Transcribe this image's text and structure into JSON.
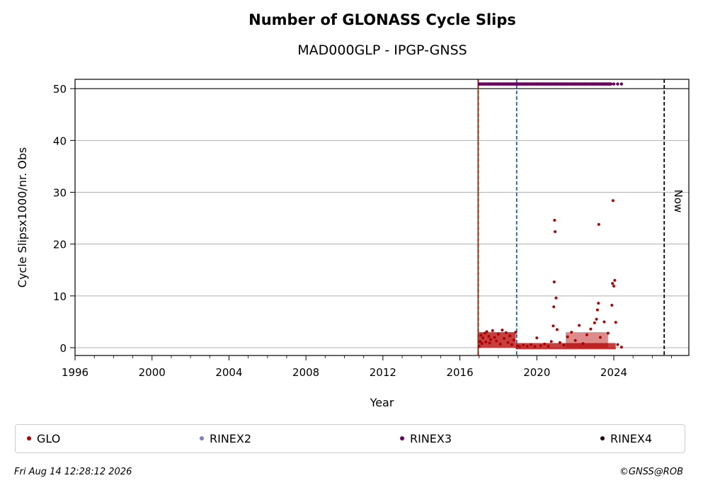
{
  "chart_data": {
    "type": "scatter",
    "title": "Number of GLONASS Cycle Slips",
    "subtitle": "MAD000GLP - IPGP-GNSS",
    "xlabel": "Year",
    "ylabel": "Cycle Slipsx1000/nr. Obs",
    "xlim": [
      1996.0,
      2027.9
    ],
    "ylim": [
      -1.5,
      51.8
    ],
    "xticks": [
      1996,
      2000,
      2004,
      2008,
      2012,
      2016,
      2020,
      2024
    ],
    "yticks": [
      0,
      10,
      20,
      30,
      40,
      50
    ],
    "grid": "horizontal",
    "legend_placement": "bottom",
    "vertical_lines": [
      {
        "x": 2016.95,
        "color": "#008000",
        "style": "solid"
      },
      {
        "x": 2016.95,
        "color": "#cc0000",
        "style": "dashed"
      },
      {
        "x": 2018.95,
        "color": "#1f5fb0",
        "style": "dashed"
      },
      {
        "x": 2026.62,
        "color": "#000000",
        "style": "dashed",
        "label": "Now"
      }
    ],
    "series": [
      {
        "name": "GLO",
        "color": "#b30000",
        "points": [
          [
            2017.0,
            0.3
          ],
          [
            2017.05,
            1.2
          ],
          [
            2017.1,
            2.4
          ],
          [
            2017.15,
            0.8
          ],
          [
            2017.2,
            1.9
          ],
          [
            2017.3,
            2.8
          ],
          [
            2017.35,
            1.1
          ],
          [
            2017.4,
            3.1
          ],
          [
            2017.5,
            2.2
          ],
          [
            2017.55,
            0.9
          ],
          [
            2017.6,
            1.6
          ],
          [
            2017.7,
            3.3
          ],
          [
            2017.8,
            2.0
          ],
          [
            2017.9,
            1.3
          ],
          [
            2018.0,
            2.6
          ],
          [
            2018.1,
            0.7
          ],
          [
            2018.2,
            3.4
          ],
          [
            2018.3,
            1.8
          ],
          [
            2018.4,
            2.9
          ],
          [
            2018.5,
            1.0
          ],
          [
            2018.6,
            2.3
          ],
          [
            2018.7,
            0.6
          ],
          [
            2018.8,
            1.5
          ],
          [
            2018.9,
            3.0
          ],
          [
            2019.0,
            0.4
          ],
          [
            2019.1,
            0.2
          ],
          [
            2019.3,
            0.5
          ],
          [
            2019.5,
            0.3
          ],
          [
            2019.7,
            0.6
          ],
          [
            2019.9,
            0.2
          ],
          [
            2020.0,
            1.9
          ],
          [
            2020.2,
            0.4
          ],
          [
            2020.4,
            0.7
          ],
          [
            2020.6,
            0.3
          ],
          [
            2020.75,
            1.2
          ],
          [
            2020.85,
            4.2
          ],
          [
            2020.88,
            7.9
          ],
          [
            2020.9,
            12.7
          ],
          [
            2020.92,
            24.6
          ],
          [
            2020.95,
            22.4
          ],
          [
            2021.0,
            9.6
          ],
          [
            2021.05,
            3.5
          ],
          [
            2021.2,
            1.0
          ],
          [
            2021.4,
            0.5
          ],
          [
            2021.6,
            2.1
          ],
          [
            2021.8,
            3.0
          ],
          [
            2022.0,
            1.4
          ],
          [
            2022.2,
            4.3
          ],
          [
            2022.4,
            0.8
          ],
          [
            2022.6,
            2.5
          ],
          [
            2022.8,
            3.6
          ],
          [
            2023.0,
            4.8
          ],
          [
            2023.1,
            5.5
          ],
          [
            2023.15,
            7.3
          ],
          [
            2023.2,
            8.6
          ],
          [
            2023.22,
            23.8
          ],
          [
            2023.3,
            2.0
          ],
          [
            2023.5,
            5.0
          ],
          [
            2023.7,
            2.8
          ],
          [
            2023.9,
            8.2
          ],
          [
            2023.93,
            12.4
          ],
          [
            2023.96,
            28.4
          ],
          [
            2024.0,
            11.9
          ],
          [
            2024.05,
            13.0
          ],
          [
            2024.1,
            4.9
          ],
          [
            2024.2,
            0.6
          ],
          [
            2024.4,
            0.1
          ]
        ]
      },
      {
        "name": "RINEX2",
        "color": "#7b7fc4",
        "points": []
      },
      {
        "name": "RINEX3",
        "color": "#6a0060",
        "points": [
          [
            2017.0,
            50.9
          ],
          [
            2017.5,
            50.9
          ],
          [
            2018.0,
            50.9
          ],
          [
            2018.5,
            50.9
          ],
          [
            2019.0,
            50.9
          ],
          [
            2019.5,
            50.9
          ],
          [
            2020.0,
            50.9
          ],
          [
            2020.5,
            50.9
          ],
          [
            2021.0,
            50.9
          ],
          [
            2021.5,
            50.9
          ],
          [
            2022.0,
            50.9
          ],
          [
            2022.5,
            50.9
          ],
          [
            2023.0,
            50.9
          ],
          [
            2023.5,
            50.9
          ],
          [
            2023.8,
            50.9
          ],
          [
            2024.0,
            50.9
          ],
          [
            2024.2,
            50.9
          ],
          [
            2024.4,
            50.9
          ]
        ]
      },
      {
        "name": "RINEX4",
        "color": "#1a0010",
        "points": []
      }
    ]
  },
  "legend": [
    {
      "label": "GLO",
      "color": "#b30000"
    },
    {
      "label": "RINEX2",
      "color": "#7b7fc4"
    },
    {
      "label": "RINEX3",
      "color": "#6a0060"
    },
    {
      "label": "RINEX4",
      "color": "#1a0010"
    }
  ],
  "now_label": "Now",
  "footer": {
    "timestamp": "Fri Aug 14 12:28:12 2026",
    "copyright": "©GNSS@ROB"
  }
}
